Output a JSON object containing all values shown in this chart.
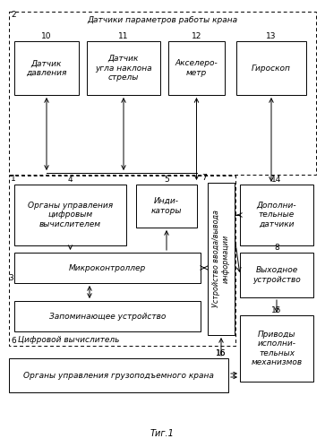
{
  "fig_label": "Τиг.1",
  "title_sensors": "Датчики параметров работы крана",
  "box_pressure": "Датчик\nдавления",
  "box_angle": "Датчик\nугла наклона\nстрелы",
  "box_accel": "Акселеро-\nметр",
  "box_gyro": "Гироскоп",
  "box_organs_ctrl": "Органы управления\nцифровым\nвычислителем",
  "box_indicators": "Инди-\nкаторы",
  "box_micro": "Микроконтроллер",
  "box_memory": "Запоминающее устройство",
  "label_digit": "Цифровой вычислитель",
  "box_io": "Устройство ввода/вывода\nинформации",
  "box_add_sensors": "Дополни-\nтельные\nдатчики",
  "box_output": "Выходное\nустройство",
  "box_organs_crane": "Органы управления грузоподъемного крана",
  "box_drives": "Приводы\nисполни-\nтельных\nмеханизмов",
  "bg": "#ffffff",
  "box_color": "#ffffff",
  "border_color": "#000000",
  "text_color": "#000000"
}
